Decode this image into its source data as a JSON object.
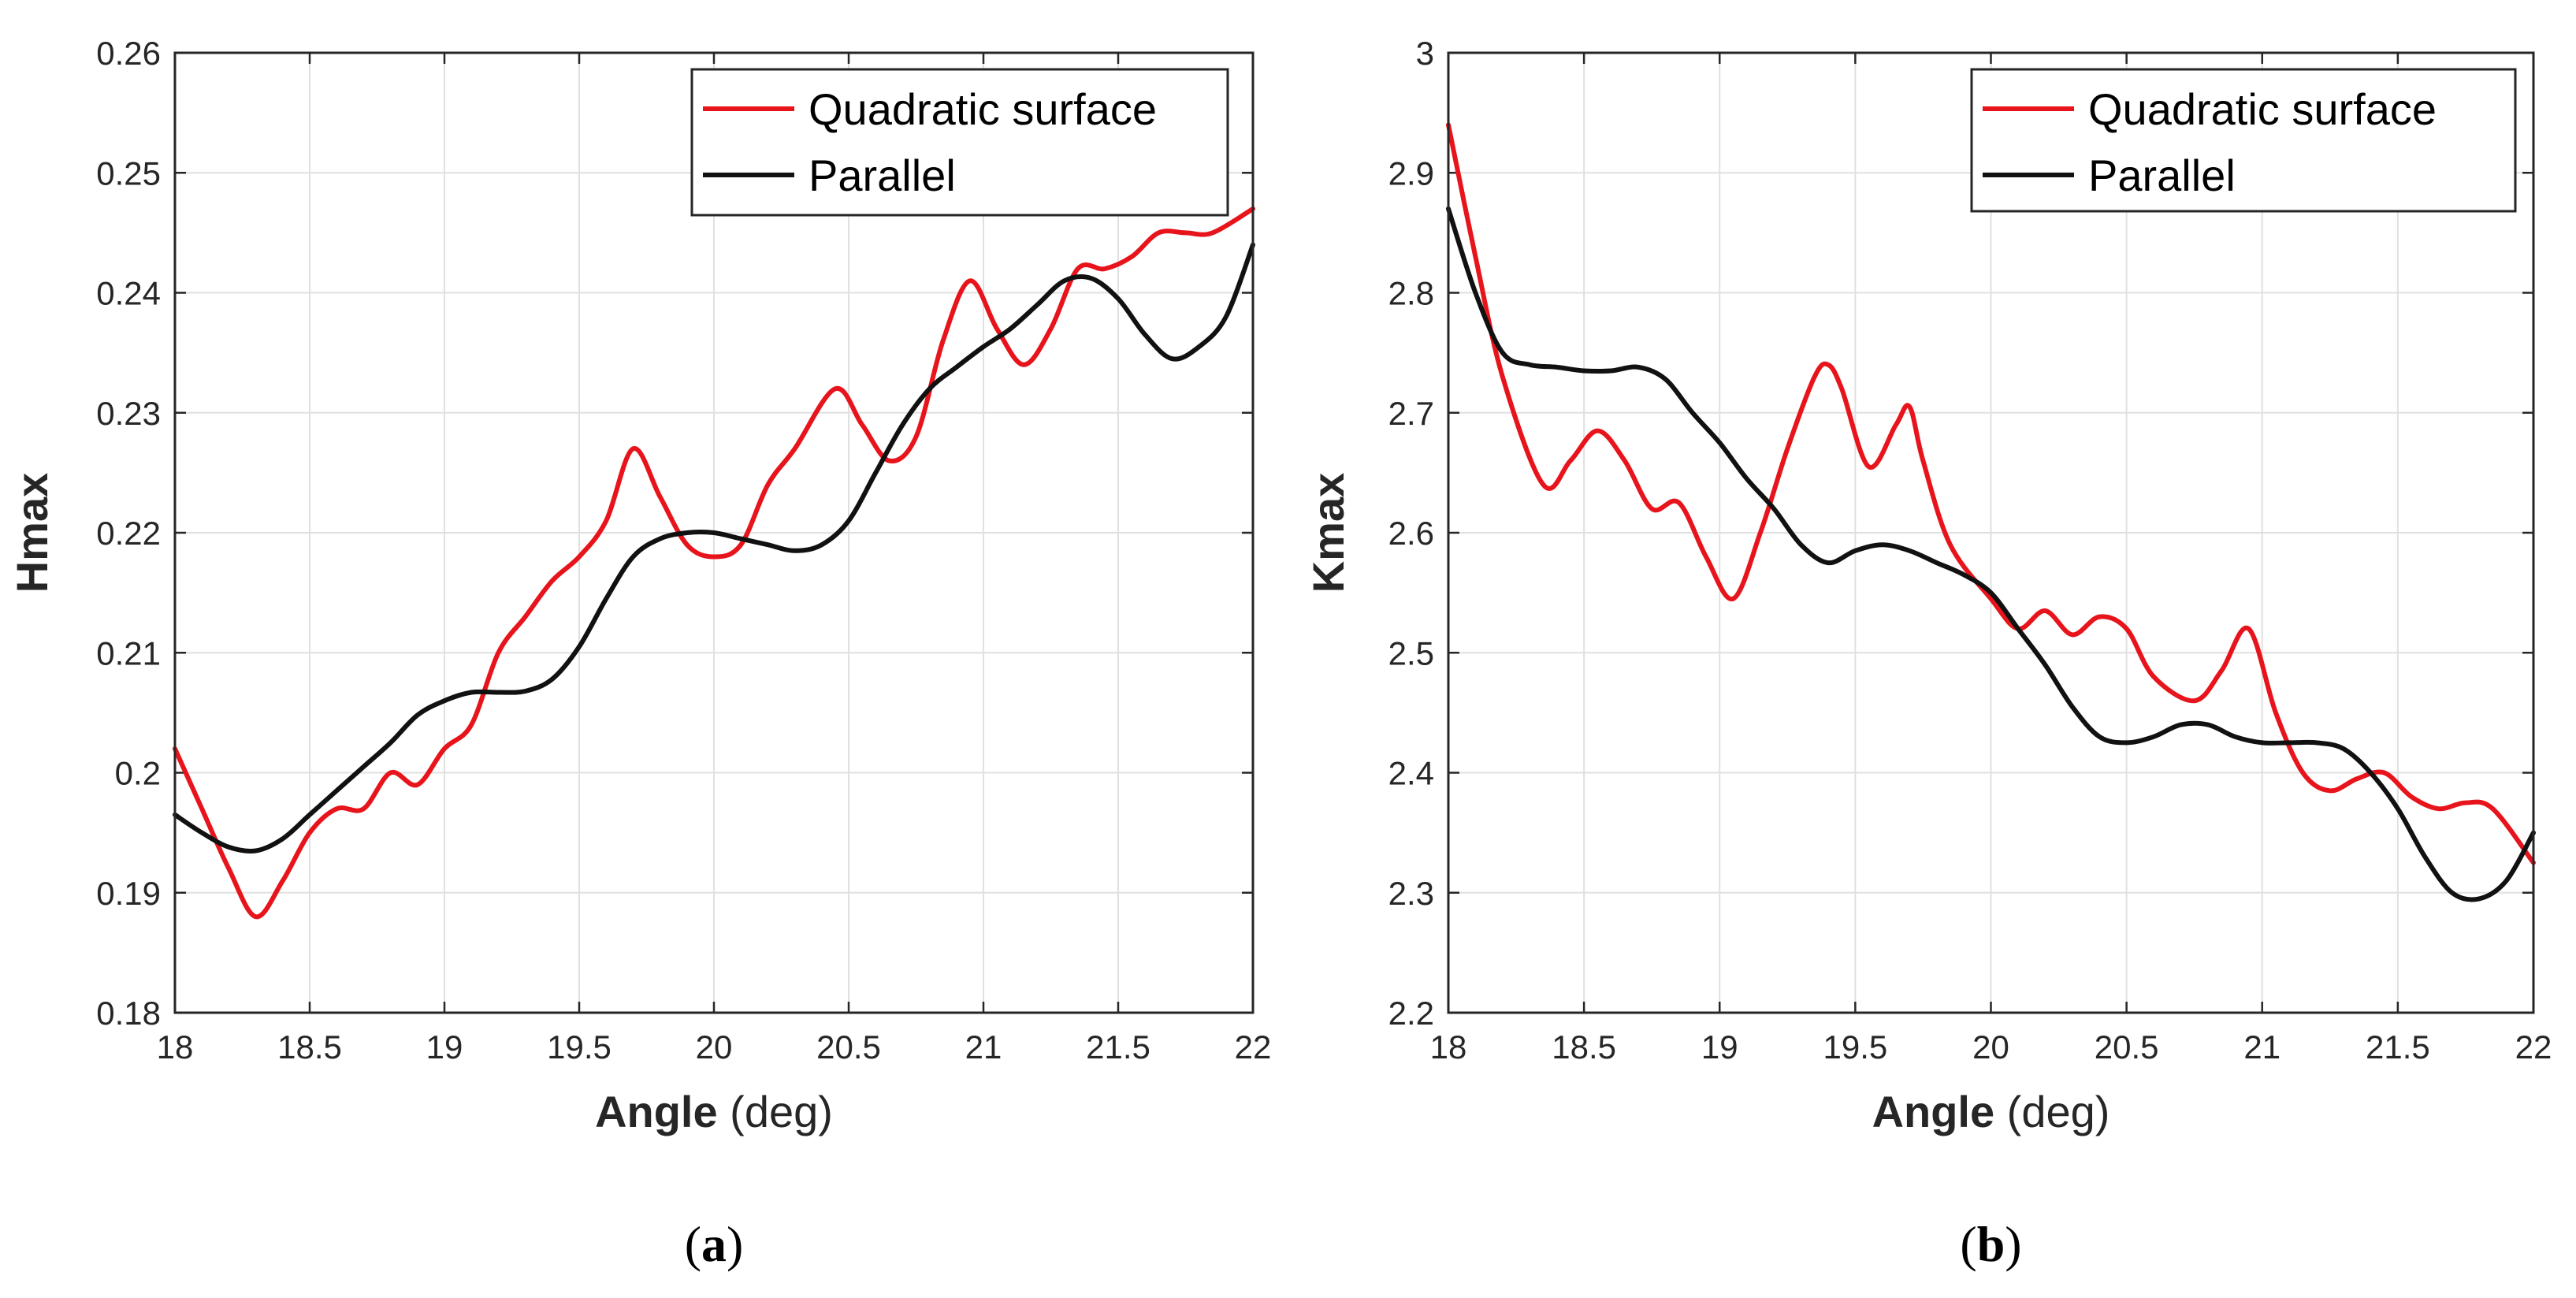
{
  "chart_data": [
    {
      "type": "line",
      "panel_label": "a",
      "title": "",
      "xlabel": "Angle",
      "xlabel_unit": "(deg)",
      "ylabel": "Hmax",
      "xlim": [
        18,
        22
      ],
      "ylim": [
        0.18,
        0.26
      ],
      "x_ticks": [
        18,
        18.5,
        19,
        19.5,
        20,
        20.5,
        21,
        21.5,
        22
      ],
      "x_tick_labels": [
        "18",
        "18.5",
        "19",
        "19.5",
        "20",
        "20.5",
        "21",
        "21.5",
        "22"
      ],
      "y_ticks": [
        0.18,
        0.19,
        0.2,
        0.21,
        0.22,
        0.23,
        0.24,
        0.25,
        0.26
      ],
      "y_tick_labels": [
        "0.18",
        "0.19",
        "0.2",
        "0.21",
        "0.22",
        "0.23",
        "0.24",
        "0.25",
        "0.26"
      ],
      "grid": true,
      "legend_position": "top-right",
      "series": [
        {
          "name": "Quadratic surface",
          "color": "#e8141c",
          "x": [
            18.0,
            18.1,
            18.2,
            18.3,
            18.4,
            18.5,
            18.6,
            18.7,
            18.8,
            18.9,
            19.0,
            19.1,
            19.2,
            19.3,
            19.4,
            19.5,
            19.6,
            19.7,
            19.8,
            19.9,
            20.0,
            20.1,
            20.2,
            20.3,
            20.45,
            20.55,
            20.65,
            20.75,
            20.85,
            20.95,
            21.05,
            21.15,
            21.25,
            21.35,
            21.45,
            21.55,
            21.65,
            21.75,
            21.85,
            22.0
          ],
          "y": [
            0.202,
            0.197,
            0.192,
            0.188,
            0.191,
            0.195,
            0.197,
            0.197,
            0.2,
            0.199,
            0.202,
            0.204,
            0.21,
            0.213,
            0.216,
            0.218,
            0.221,
            0.227,
            0.223,
            0.219,
            0.218,
            0.219,
            0.224,
            0.227,
            0.232,
            0.229,
            0.226,
            0.228,
            0.236,
            0.241,
            0.237,
            0.234,
            0.237,
            0.242,
            0.242,
            0.243,
            0.245,
            0.245,
            0.245,
            0.247
          ]
        },
        {
          "name": "Parallel",
          "color": "#111111",
          "x": [
            18.0,
            18.1,
            18.2,
            18.3,
            18.4,
            18.5,
            18.6,
            18.7,
            18.8,
            18.9,
            19.0,
            19.1,
            19.2,
            19.3,
            19.4,
            19.5,
            19.6,
            19.7,
            19.8,
            19.9,
            20.0,
            20.1,
            20.2,
            20.3,
            20.4,
            20.5,
            20.6,
            20.7,
            20.8,
            20.9,
            21.0,
            21.1,
            21.2,
            21.3,
            21.4,
            21.5,
            21.6,
            21.7,
            21.8,
            21.9,
            22.0
          ],
          "y": [
            0.1965,
            0.195,
            0.1938,
            0.1935,
            0.1945,
            0.1965,
            0.1985,
            0.2005,
            0.2025,
            0.2048,
            0.206,
            0.2067,
            0.2067,
            0.2068,
            0.2078,
            0.2105,
            0.2145,
            0.218,
            0.2195,
            0.22,
            0.22,
            0.2195,
            0.219,
            0.2185,
            0.219,
            0.221,
            0.225,
            0.229,
            0.232,
            0.2338,
            0.2355,
            0.237,
            0.239,
            0.241,
            0.2412,
            0.2395,
            0.2365,
            0.2345,
            0.2355,
            0.238,
            0.244
          ]
        }
      ]
    },
    {
      "type": "line",
      "panel_label": "b",
      "title": "",
      "xlabel": "Angle",
      "xlabel_unit": "(deg)",
      "ylabel": "Kmax",
      "xlim": [
        18,
        22
      ],
      "ylim": [
        2.2,
        3.0
      ],
      "x_ticks": [
        18,
        18.5,
        19,
        19.5,
        20,
        20.5,
        21,
        21.5,
        22
      ],
      "x_tick_labels": [
        "18",
        "18.5",
        "19",
        "19.5",
        "20",
        "20.5",
        "21",
        "21.5",
        "22"
      ],
      "y_ticks": [
        2.2,
        2.3,
        2.4,
        2.5,
        2.6,
        2.7,
        2.8,
        2.9,
        3.0
      ],
      "y_tick_labels": [
        "2.2",
        "2.3",
        "2.4",
        "2.5",
        "2.6",
        "2.7",
        "2.8",
        "2.9",
        "3"
      ],
      "grid": true,
      "legend_position": "top-right",
      "series": [
        {
          "name": "Quadratic surface",
          "color": "#e8141c",
          "x": [
            18.0,
            18.1,
            18.2,
            18.35,
            18.45,
            18.55,
            18.65,
            18.75,
            18.85,
            18.95,
            19.05,
            19.15,
            19.25,
            19.35,
            19.4,
            19.45,
            19.55,
            19.65,
            19.7,
            19.75,
            19.85,
            20.0,
            20.1,
            20.2,
            20.3,
            20.4,
            20.5,
            20.6,
            20.75,
            20.85,
            20.95,
            21.05,
            21.15,
            21.25,
            21.35,
            21.45,
            21.55,
            21.65,
            21.75,
            21.85,
            22.0
          ],
          "y": [
            2.94,
            2.83,
            2.73,
            2.64,
            2.66,
            2.685,
            2.66,
            2.62,
            2.625,
            2.58,
            2.545,
            2.6,
            2.67,
            2.73,
            2.74,
            2.72,
            2.655,
            2.69,
            2.705,
            2.66,
            2.59,
            2.545,
            2.52,
            2.535,
            2.515,
            2.53,
            2.52,
            2.48,
            2.46,
            2.485,
            2.52,
            2.45,
            2.4,
            2.385,
            2.395,
            2.4,
            2.38,
            2.37,
            2.375,
            2.37,
            2.325
          ]
        },
        {
          "name": "Parallel",
          "color": "#111111",
          "x": [
            18.0,
            18.1,
            18.2,
            18.3,
            18.4,
            18.5,
            18.6,
            18.7,
            18.8,
            18.9,
            19.0,
            19.1,
            19.2,
            19.3,
            19.4,
            19.5,
            19.6,
            19.7,
            19.8,
            19.9,
            20.0,
            20.1,
            20.2,
            20.3,
            20.4,
            20.5,
            20.6,
            20.7,
            20.8,
            20.9,
            21.0,
            21.1,
            21.2,
            21.3,
            21.4,
            21.5,
            21.6,
            21.7,
            21.8,
            21.9,
            22.0
          ],
          "y": [
            2.87,
            2.8,
            2.75,
            2.74,
            2.738,
            2.735,
            2.735,
            2.738,
            2.728,
            2.7,
            2.675,
            2.645,
            2.62,
            2.59,
            2.575,
            2.585,
            2.59,
            2.585,
            2.575,
            2.565,
            2.55,
            2.52,
            2.49,
            2.455,
            2.43,
            2.425,
            2.43,
            2.44,
            2.44,
            2.43,
            2.425,
            2.425,
            2.425,
            2.42,
            2.4,
            2.37,
            2.33,
            2.3,
            2.295,
            2.31,
            2.35
          ]
        }
      ]
    }
  ]
}
